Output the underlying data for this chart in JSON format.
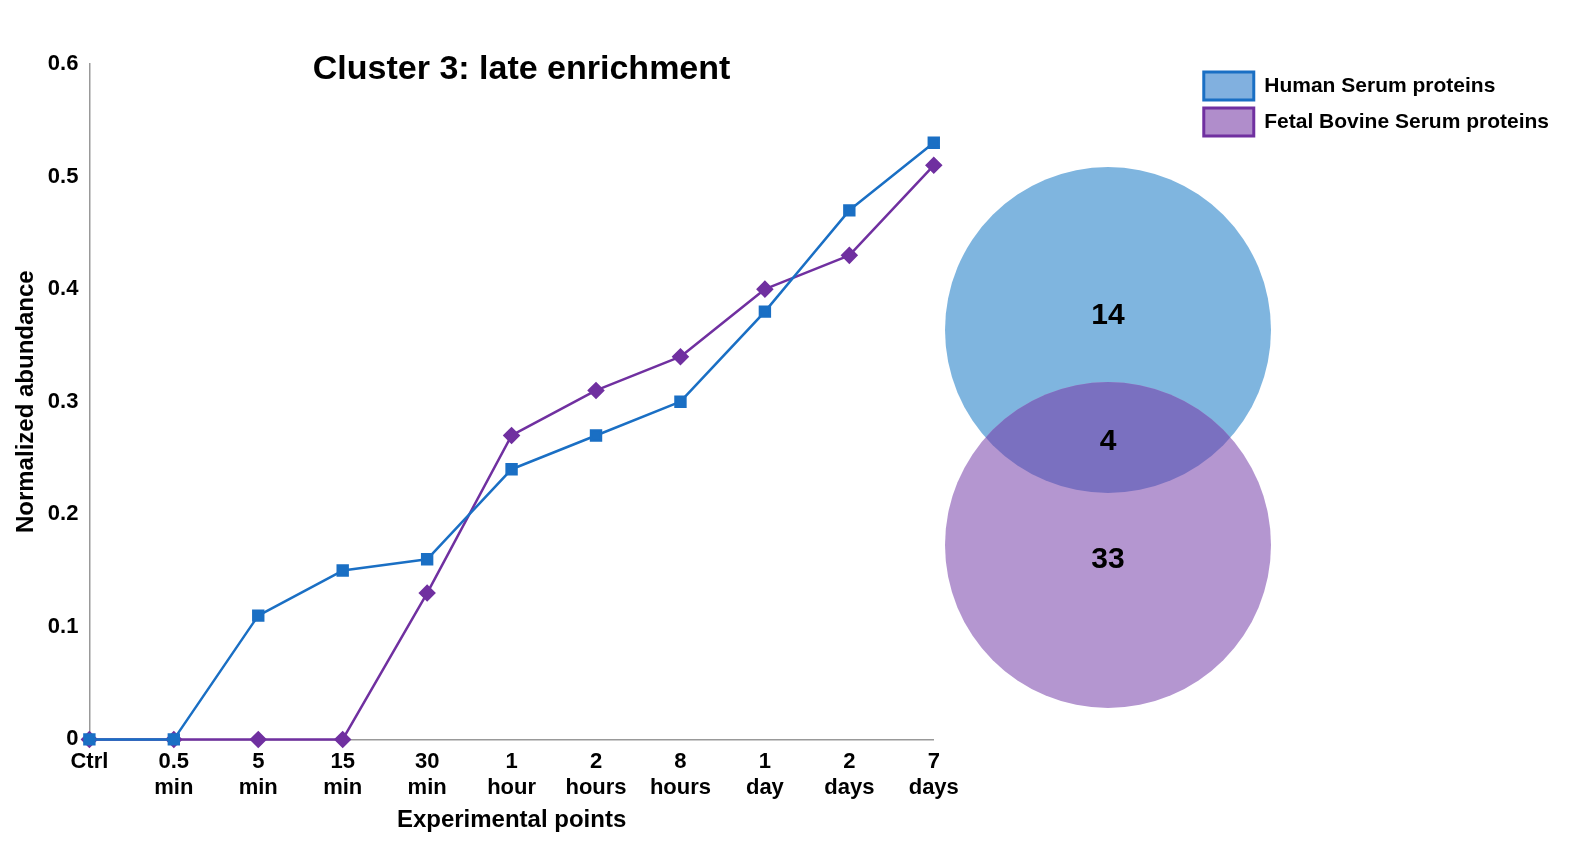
{
  "chart_data": [
    {
      "type": "line",
      "title": "Cluster 3: late enrichment",
      "xlabel": "Experimental points",
      "ylabel": "Normalized abundance",
      "categories": [
        "Ctrl",
        "0.5 min",
        "5 min",
        "15 min",
        "30 min",
        "1 hour",
        "2 hours",
        "8 hours",
        "1 day",
        "2 days",
        "7 days"
      ],
      "series": [
        {
          "name": "Human Serum proteins",
          "color": "#1a6fc4",
          "marker": "square",
          "values": [
            0,
            0,
            0.11,
            0.15,
            0.16,
            0.24,
            0.27,
            0.3,
            0.38,
            0.47,
            0.53
          ]
        },
        {
          "name": "Fetal Bovine Serum proteins",
          "color": "#7030a0",
          "marker": "diamond",
          "values": [
            0,
            0,
            0,
            0,
            0.13,
            0.27,
            0.31,
            0.34,
            0.4,
            0.43,
            0.51
          ]
        }
      ],
      "ylim": [
        0,
        0.6
      ],
      "yticks": [
        0,
        0.1,
        0.2,
        0.3,
        0.4,
        0.5,
        0.6
      ],
      "grid": false,
      "legend": "top right",
      "line_style": "solid"
    },
    {
      "type": "other",
      "values": [
        14,
        4,
        33
      ],
      "colors": [
        "#7fb5df",
        "#7a70c0",
        "#b496d0"
      ],
      "data_labels": true
    }
  ]
}
